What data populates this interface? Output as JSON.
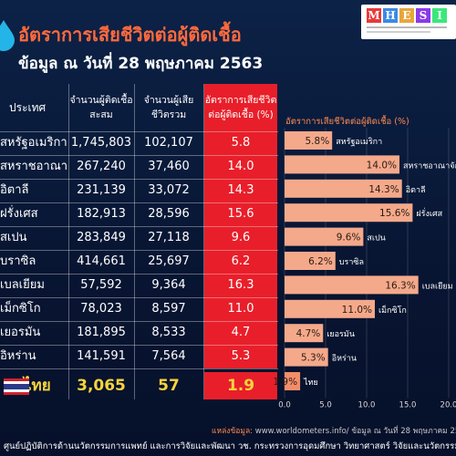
{
  "title": "อัตราการเสียชีวิตต่อผู้ติดเชื้อ",
  "subtitle": "ข้อมูล ณ วันที่ 28 พฤษภาคม 2563",
  "logo": {
    "word": "MHESI"
  },
  "table": {
    "headers": {
      "country": "ประเทศ",
      "cases": "จำนวนผู้ติดเชื้อสะสม",
      "deaths": "จำนวนผู้เสียชีวิตรวม",
      "rate": "อัตราการเสียชีวิตต่อผู้ติดเชื้อ (%)"
    },
    "rows": [
      {
        "country": "สหรัฐอเมริกา",
        "cases": "1,745,803",
        "deaths": "102,107",
        "rate": "5.8"
      },
      {
        "country": "สหราชอาณาจักร",
        "cases": "267,240",
        "deaths": "37,460",
        "rate": "14.0"
      },
      {
        "country": "อิตาลี",
        "cases": "231,139",
        "deaths": "33,072",
        "rate": "14.3"
      },
      {
        "country": "ฝรั่งเศส",
        "cases": "182,913",
        "deaths": "28,596",
        "rate": "15.6"
      },
      {
        "country": "สเปน",
        "cases": "283,849",
        "deaths": "27,118",
        "rate": "9.6"
      },
      {
        "country": "บราซิล",
        "cases": "414,661",
        "deaths": "25,697",
        "rate": "6.2"
      },
      {
        "country": "เบลเยียม",
        "cases": "57,592",
        "deaths": "9,364",
        "rate": "16.3"
      },
      {
        "country": "เม็กซิโก",
        "cases": "78,023",
        "deaths": "8,597",
        "rate": "11.0"
      },
      {
        "country": "เยอรมัน",
        "cases": "181,895",
        "deaths": "8,533",
        "rate": "4.7"
      },
      {
        "country": "อิหร่าน",
        "cases": "141,591",
        "deaths": "7,564",
        "rate": "5.3"
      }
    ],
    "thai_row": {
      "country": "ไทย",
      "cases": "3,065",
      "deaths": "57",
      "rate": "1.9"
    }
  },
  "chart_data": {
    "type": "bar",
    "orientation": "horizontal",
    "title": "อัตราการเสียชีวิตต่อผู้ติดเชื้อ (%)",
    "categories": [
      "สหรัฐอเมริกา",
      "สหราชอาณาจักร",
      "อิตาลี",
      "ฝรั่งเศส",
      "สเปน",
      "บราซิล",
      "เบลเยียม",
      "เม็กซิโก",
      "เยอรมัน",
      "อิหร่าน",
      "ไทย"
    ],
    "values": [
      5.8,
      14.0,
      14.3,
      15.6,
      9.6,
      6.2,
      16.3,
      11.0,
      4.7,
      5.3,
      1.9
    ],
    "value_labels": [
      "5.8%",
      "14.0%",
      "14.3%",
      "15.6%",
      "9.6%",
      "6.2%",
      "16.3%",
      "11.0%",
      "4.7%",
      "5.3%",
      "1.9%"
    ],
    "x_ticks": [
      "0.0",
      "5.0",
      "10.0",
      "15.0",
      "20.0"
    ],
    "xlim": [
      0,
      20
    ],
    "grid": true,
    "bar_color": "#f4a98a",
    "highlight_color": "#f28d6a"
  },
  "source": {
    "label": "แหล่งข้อมูล:",
    "text": "www.worldometers.info/ ข้อมูล ณ วันที่ 28 พฤษภาคม 25"
  },
  "footer": "ศูนย์ปฏิบัติการด้านนวัตกรรมการแพทย์ และการวิจัยและพัฒนา วช. กระทรวงการอุดมศึกษา วิทยาศาสตร์ วิจัยและนวัตกรรม",
  "colors": {
    "title": "#ff6a3d",
    "rate_cell": "#e81f2a",
    "thai": "#f6d33c",
    "background": "#0a1a3a"
  }
}
